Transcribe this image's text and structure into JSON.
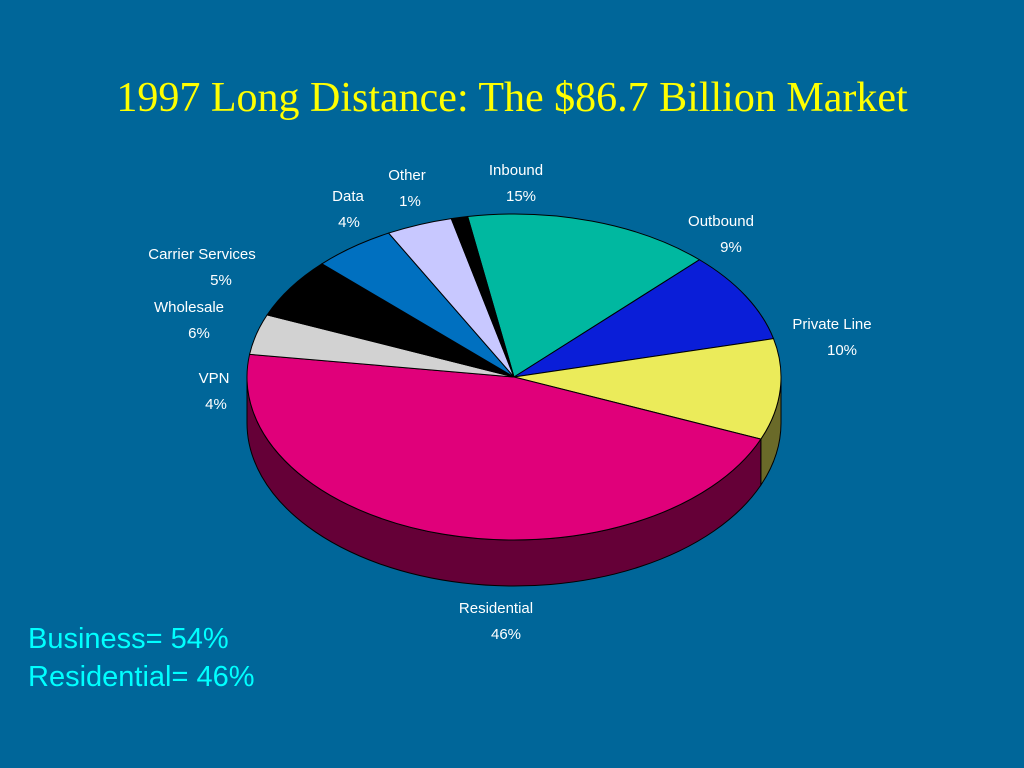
{
  "title": "1997 Long Distance: The $86.7 Billion Market",
  "summary": {
    "business": "Business= 54%",
    "residential": "Residential= 46%"
  },
  "colors": {
    "background": "#006699",
    "title": "#ffff00",
    "summary": "#00ffff"
  },
  "chart_data": {
    "type": "pie",
    "slices": [
      {
        "label": "Inbound",
        "pct_label": "15%",
        "value": 15,
        "color": "#00b8a0"
      },
      {
        "label": "Outbound",
        "pct_label": "9%",
        "value": 9,
        "color": "#0a1ed8"
      },
      {
        "label": "Private Line",
        "pct_label": "10%",
        "value": 10,
        "color": "#ebeb5a"
      },
      {
        "label": "Residential",
        "pct_label": "46%",
        "value": 46,
        "color": "#e0007a"
      },
      {
        "label": "VPN",
        "pct_label": "4%",
        "value": 4,
        "color": "#d2d2d2"
      },
      {
        "label": "Wholesale",
        "pct_label": "6%",
        "value": 6,
        "color": "#000000"
      },
      {
        "label": "Carrier Services",
        "pct_label": "5%",
        "value": 5,
        "color": "#0070c0"
      },
      {
        "label": "Data",
        "pct_label": "4%",
        "value": 4,
        "color": "#c8c8ff"
      },
      {
        "label": "Other",
        "pct_label": "1%",
        "value": 1,
        "color": "#000000"
      }
    ]
  }
}
